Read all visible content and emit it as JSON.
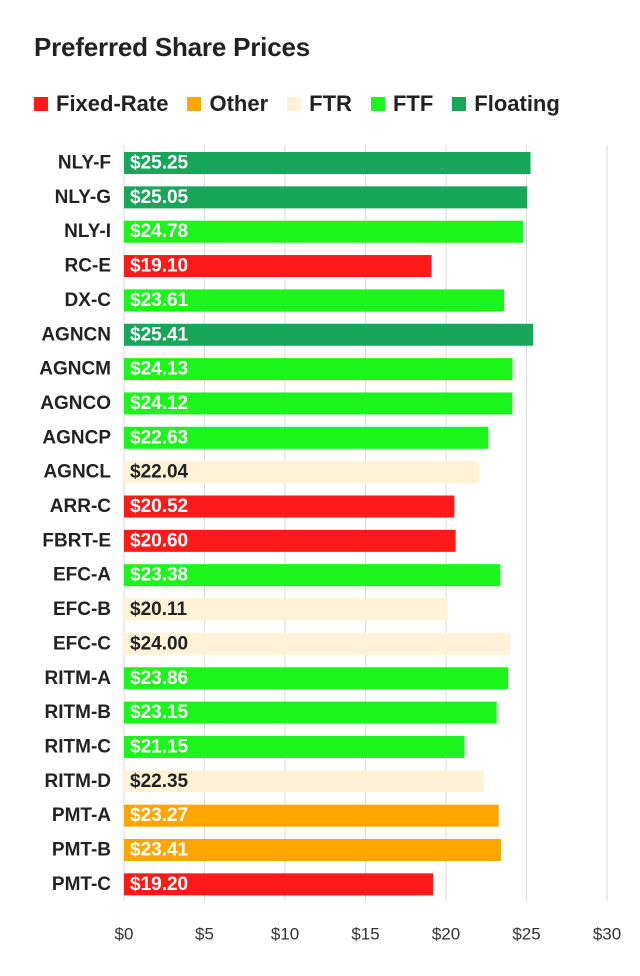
{
  "chart_data": {
    "type": "bar",
    "orientation": "horizontal",
    "title": "Preferred Share Prices",
    "legend": {
      "placement": "top-left",
      "entries": [
        {
          "name": "Fixed-Rate",
          "color": "#ff1a1a"
        },
        {
          "name": "Other",
          "color": "#ffa500"
        },
        {
          "name": "FTR",
          "color": "#fff2d6"
        },
        {
          "name": "FTF",
          "color": "#1cf51c"
        },
        {
          "name": "Floating",
          "color": "#17a65a"
        }
      ]
    },
    "categories": [
      "NLY-F",
      "NLY-G",
      "NLY-I",
      "RC-E",
      "DX-C",
      "AGNCN",
      "AGNCM",
      "AGNCO",
      "AGNCP",
      "AGNCL",
      "ARR-C",
      "FBRT-E",
      "EFC-A",
      "EFC-B",
      "EFC-C",
      "RITM-A",
      "RITM-B",
      "RITM-C",
      "RITM-D",
      "PMT-A",
      "PMT-B",
      "PMT-C"
    ],
    "values": [
      25.25,
      25.05,
      24.78,
      19.1,
      23.61,
      25.41,
      24.13,
      24.12,
      22.63,
      22.04,
      20.52,
      20.6,
      23.38,
      20.11,
      24.0,
      23.86,
      23.15,
      21.15,
      22.35,
      23.27,
      23.41,
      19.2
    ],
    "value_labels": [
      "$25.25",
      "$25.05",
      "$24.78",
      "$19.10",
      "$23.61",
      "$25.41",
      "$24.13",
      "$24.12",
      "$22.63",
      "$22.04",
      "$20.52",
      "$20.60",
      "$23.38",
      "$20.11",
      "$24.00",
      "$23.86",
      "$23.15",
      "$21.15",
      "$22.35",
      "$23.27",
      "$23.41",
      "$19.20"
    ],
    "bar_types": [
      "Floating",
      "Floating",
      "FTF",
      "Fixed-Rate",
      "FTF",
      "Floating",
      "FTF",
      "FTF",
      "FTF",
      "FTR",
      "Fixed-Rate",
      "Fixed-Rate",
      "FTF",
      "FTR",
      "FTR",
      "FTF",
      "FTF",
      "FTF",
      "FTR",
      "Other",
      "Other",
      "Fixed-Rate"
    ],
    "xlim": [
      0,
      30
    ],
    "x_ticks": [
      0,
      5,
      10,
      15,
      20,
      25,
      30
    ],
    "x_tick_labels": [
      "$0",
      "$5",
      "$10",
      "$15",
      "$20",
      "$25",
      "$30"
    ],
    "grid": "vertical",
    "xlabel": "",
    "ylabel": ""
  }
}
